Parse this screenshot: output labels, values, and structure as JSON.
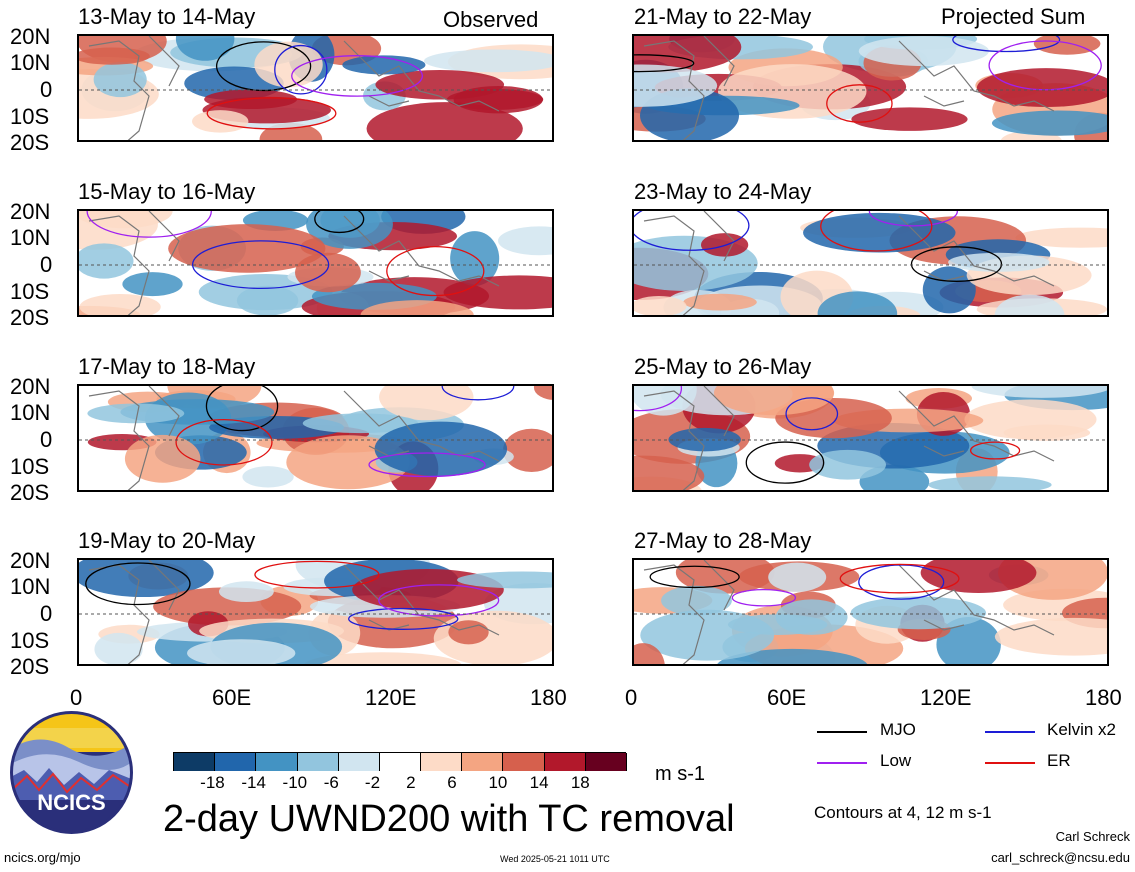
{
  "left_header": "Observed",
  "right_header": "Projected Sum",
  "panels_left": [
    "13-May to 14-May",
    "15-May to 16-May",
    "17-May to 18-May",
    "19-May to 20-May"
  ],
  "panels_right": [
    "21-May to 22-May",
    "23-May to 24-May",
    "25-May to 26-May",
    "27-May to 28-May"
  ],
  "lat_labels": [
    "20N",
    "10N",
    "0",
    "10S",
    "20S"
  ],
  "lon_labels": [
    "0",
    "60E",
    "120E",
    "180"
  ],
  "colorbar": {
    "ticks": [
      "-18",
      "-14",
      "-10",
      "-6",
      "-2",
      "2",
      "6",
      "10",
      "14",
      "18"
    ],
    "colors": [
      "#0d3b66",
      "#2166ac",
      "#4393c3",
      "#92c5de",
      "#d1e5f0",
      "#ffffff",
      "#fddbc7",
      "#f4a582",
      "#d6604d",
      "#b2182b",
      "#67001f"
    ],
    "units": "m s-1"
  },
  "legend": [
    {
      "label": "MJO",
      "color": "#000000"
    },
    {
      "label": "Kelvin x2",
      "color": "#1d1dd6"
    },
    {
      "label": "Low",
      "color": "#a020f0"
    },
    {
      "label": "ER",
      "color": "#e01010"
    }
  ],
  "contour_note": "Contours at 4, 12 m s-1",
  "title": "2-day UWND200 with TC removal",
  "logo_text": "NCICS",
  "url": "ncics.org/mjo",
  "timestamp": "Wed 2025-05-21 1011 UTC",
  "author": "Carl Schreck",
  "email": "carl_schreck@ncsu.edu"
}
